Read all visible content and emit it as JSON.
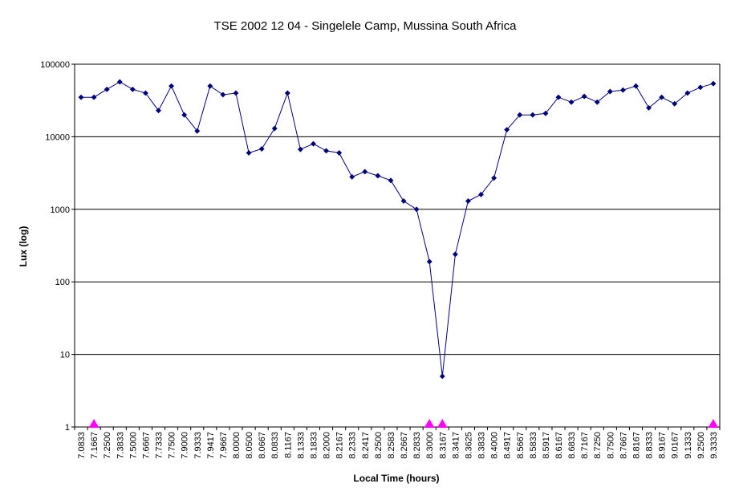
{
  "chart_data": {
    "type": "line",
    "title": "TSE 2002 12 04 - Singelele Camp, Mussina South Africa",
    "xlabel": "Local Time (hours)",
    "ylabel": "Lux (log)",
    "y_scale": "log",
    "ylim": [
      1,
      100000
    ],
    "y_ticks": [
      "1",
      "10",
      "100",
      "1000",
      "10000",
      "100000"
    ],
    "grid": "horizontal",
    "legend": "none",
    "colors": {
      "line": "#000080",
      "marker": "#000080",
      "contact_marker": "#ff00ff",
      "grid": "#000000",
      "plot_bg": "#ffffff"
    },
    "categories": [
      "7.0833",
      "7.1667",
      "7.2500",
      "7.3833",
      "7.5000",
      "7.6667",
      "7.7333",
      "7.7500",
      "7.9000",
      "7.9333",
      "7.9417",
      "7.9667",
      "8.0000",
      "8.0500",
      "8.0667",
      "8.0833",
      "8.1167",
      "8.1333",
      "8.1833",
      "8.2000",
      "8.2167",
      "8.2333",
      "8.2417",
      "8.2500",
      "8.2583",
      "8.2667",
      "8.2833",
      "8.3000",
      "8.3167",
      "8.3417",
      "8.3625",
      "8.3833",
      "8.4000",
      "8.4917",
      "8.5667",
      "8.5833",
      "8.5917",
      "8.6167",
      "8.6833",
      "8.7167",
      "8.7250",
      "8.7500",
      "8.7667",
      "8.8167",
      "8.8333",
      "8.9167",
      "9.0167",
      "9.1333",
      "9.2500",
      "9.3333"
    ],
    "series": [
      {
        "values": [
          35000,
          35000,
          45000,
          57000,
          45000,
          40000,
          23000,
          50000,
          20000,
          12000,
          50000,
          38000,
          40000,
          6000,
          6800,
          13000,
          40000,
          6700,
          8000,
          6400,
          6000,
          2800,
          3300,
          2900,
          2500,
          1300,
          1000,
          190,
          5,
          240,
          1300,
          1600,
          2700,
          12500,
          20000,
          20000,
          21000,
          35000,
          30000,
          36000,
          30000,
          42000,
          44000,
          50000,
          25000,
          35000,
          28500,
          40000,
          48000,
          54000
        ]
      }
    ],
    "contact_markers": [
      "7.1667",
      "8.3000",
      "8.3167",
      "9.3333"
    ]
  }
}
